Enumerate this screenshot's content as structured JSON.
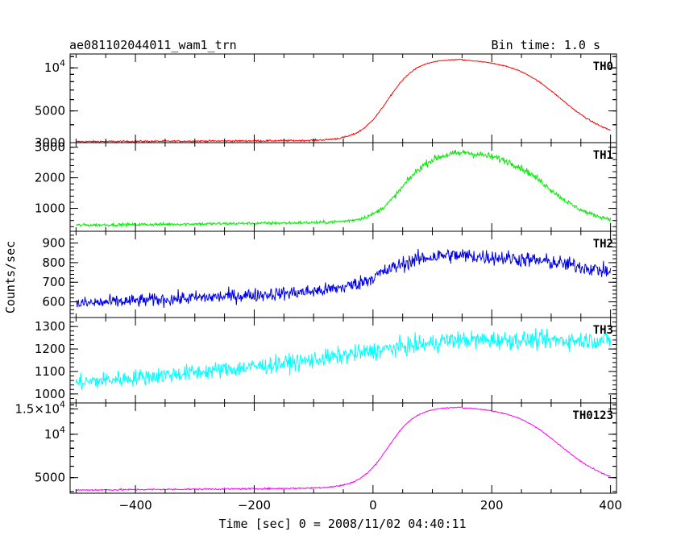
{
  "header": {
    "title": "ae081102044011_wam1_trn",
    "bin_time": "Bin time: 1.0 s"
  },
  "chart_data": {
    "type": "line",
    "xlabel": "Time [sec] 0 = 2008/11/02 04:40:11",
    "ylabel": "Counts/sec",
    "xlim": [
      -510,
      410
    ],
    "x_ticks": [
      -400,
      -200,
      0,
      200,
      400
    ],
    "x_tick_labels": [
      "−400",
      "−200",
      "0",
      "200",
      "400"
    ],
    "panels": [
      {
        "name": "TH0",
        "color": "#ff0000",
        "scale": "log",
        "ylim": [
          3000,
          12500
        ],
        "y_ticks": [
          3000,
          5000,
          10000
        ],
        "y_tick_labels": [
          "3000",
          "5000",
          "10^4"
        ],
        "baseline": 3050,
        "peak": 11500,
        "peak_x": 150,
        "pre_drift": 50,
        "rise_w": 65,
        "fall_w": 105,
        "fall_end": 3300,
        "noise": 40,
        "anchors": [
          [
            -500,
            3050
          ],
          [
            -300,
            3080
          ],
          [
            -100,
            3200
          ],
          [
            0,
            4000
          ],
          [
            50,
            6500
          ],
          [
            100,
            10000
          ],
          [
            150,
            11500
          ],
          [
            200,
            10500
          ],
          [
            300,
            7500
          ],
          [
            400,
            3300
          ]
        ]
      },
      {
        "name": "TH1",
        "color": "#00ee00",
        "scale": "linear",
        "ylim": [
          250,
          3150
        ],
        "y_ticks": [
          1000,
          2000,
          3000
        ],
        "y_tick_labels": [
          "1000",
          "2000",
          "3000"
        ],
        "baseline": 450,
        "peak": 2850,
        "peak_x": 160,
        "pre_drift": 80,
        "rise_w": 70,
        "fall_w": 100,
        "fall_end": 550,
        "noise": 45,
        "anchors": [
          [
            -500,
            450
          ],
          [
            -100,
            520
          ],
          [
            0,
            800
          ],
          [
            50,
            1600
          ],
          [
            100,
            2600
          ],
          [
            160,
            2850
          ],
          [
            250,
            2400
          ],
          [
            350,
            900
          ],
          [
            400,
            550
          ]
        ]
      },
      {
        "name": "TH2",
        "color": "#0000ee",
        "scale": "linear",
        "ylim": [
          520,
          960
        ],
        "y_ticks": [
          600,
          700,
          800,
          900
        ],
        "y_tick_labels": [
          "600",
          "700",
          "800",
          "900"
        ],
        "baseline": 590,
        "peak": 840,
        "peak_x": 130,
        "pre_drift": 60,
        "rise_w": 90,
        "fall_w": 200,
        "fall_end": 680,
        "noise": 32,
        "anchors": [
          [
            -500,
            590
          ],
          [
            -200,
            620
          ],
          [
            0,
            720
          ],
          [
            100,
            830
          ],
          [
            150,
            840
          ],
          [
            250,
            810
          ],
          [
            400,
            680
          ]
        ]
      },
      {
        "name": "TH3",
        "color": "#00ffff",
        "scale": "linear",
        "ylim": [
          960,
          1340
        ],
        "y_ticks": [
          1000,
          1100,
          1200,
          1300
        ],
        "y_tick_labels": [
          "1000",
          "1100",
          "1200",
          "1300"
        ],
        "baseline": 1050,
        "peak": 1240,
        "peak_x": 150,
        "pre_drift": 90,
        "rise_w": 200,
        "fall_w": 600,
        "fall_end": 1230,
        "noise": 35,
        "anchors": [
          [
            -500,
            1050
          ],
          [
            -200,
            1090
          ],
          [
            0,
            1170
          ],
          [
            100,
            1220
          ],
          [
            400,
            1240
          ]
        ]
      },
      {
        "name": "TH0123",
        "color": "#ff00ff",
        "scale": "log",
        "ylim": [
          3900,
          16500
        ],
        "y_ticks": [
          5000,
          10000,
          15000
        ],
        "y_tick_labels": [
          "5000",
          "10^4",
          "1.5×10^4"
        ],
        "baseline": 4100,
        "peak": 15500,
        "peak_x": 150,
        "pre_drift": 120,
        "rise_w": 65,
        "fall_w": 105,
        "fall_end": 4600,
        "noise": 50,
        "anchors": [
          [
            -500,
            4100
          ],
          [
            -100,
            4300
          ],
          [
            0,
            5500
          ],
          [
            100,
            13500
          ],
          [
            150,
            15500
          ],
          [
            250,
            13000
          ],
          [
            400,
            4600
          ]
        ]
      }
    ]
  }
}
